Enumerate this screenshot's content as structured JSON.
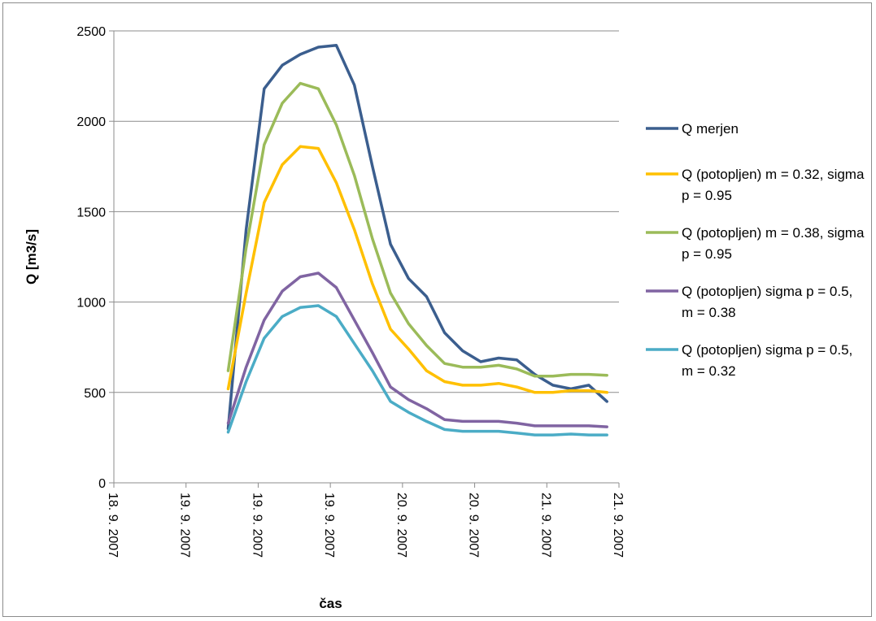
{
  "chart_data": {
    "type": "line",
    "title": "",
    "xlabel": "čas",
    "ylabel": "Q [m3/s]",
    "ylim": [
      0,
      2500
    ],
    "yticks": [
      0,
      500,
      1000,
      1500,
      2000,
      2500
    ],
    "xlim": [
      "18.9.2007 00:00",
      "21.9.2007 12:00"
    ],
    "xticks": [
      "18. 9. 2007",
      "19. 9. 2007",
      "19. 9. 2007",
      "19. 9. 2007",
      "20. 9. 2007",
      "20. 9. 2007",
      "21. 9. 2007",
      "21. 9. 2007"
    ],
    "grid": "horizontal",
    "legend_position": "right",
    "x": [
      "18.9.2007 19:00",
      "18.9.2007 22:00",
      "19.9.2007 01:00",
      "19.9.2007 04:00",
      "19.9.2007 07:00",
      "19.9.2007 10:00",
      "19.9.2007 13:00",
      "19.9.2007 16:00",
      "19.9.2007 19:00",
      "19.9.2007 22:00",
      "20.9.2007 01:00",
      "20.9.2007 04:00",
      "20.9.2007 07:00",
      "20.9.2007 10:00",
      "20.9.2007 13:00",
      "20.9.2007 16:00",
      "20.9.2007 19:00",
      "20.9.2007 22:00",
      "21.9.2007 01:00",
      "21.9.2007 04:00",
      "21.9.2007 07:00",
      "21.9.2007 10:00"
    ],
    "series": [
      {
        "name": "Q merjen",
        "color": "#3b5e8e",
        "values": [
          300,
          1400,
          2180,
          2310,
          2370,
          2410,
          2420,
          2200,
          1750,
          1320,
          1130,
          1030,
          830,
          730,
          670,
          690,
          680,
          600,
          540,
          520,
          540,
          450
        ]
      },
      {
        "name": "Q (potopljen) m = 0.32, sigma p = 0.95",
        "color": "#ffc000",
        "values": [
          520,
          1050,
          1550,
          1760,
          1860,
          1850,
          1660,
          1400,
          1100,
          850,
          740,
          620,
          560,
          540,
          540,
          550,
          530,
          500,
          500,
          510,
          510,
          500
        ]
      },
      {
        "name": "Q (potopljen) m = 0.38, sigma p = 0.95",
        "color": "#9bbb59",
        "values": [
          620,
          1300,
          1870,
          2100,
          2210,
          2180,
          1980,
          1700,
          1350,
          1050,
          880,
          760,
          660,
          640,
          640,
          650,
          630,
          590,
          590,
          600,
          600,
          595
        ]
      },
      {
        "name": "Q (potopljen) sigma p = 0.5, m = 0.38",
        "color": "#8064a2",
        "values": [
          330,
          640,
          900,
          1060,
          1140,
          1160,
          1080,
          900,
          720,
          530,
          460,
          410,
          350,
          340,
          340,
          340,
          330,
          315,
          315,
          315,
          315,
          310
        ]
      },
      {
        "name": "Q (potopljen) sigma p = 0.5, m = 0.32",
        "color": "#4bacc6",
        "values": [
          280,
          560,
          800,
          920,
          970,
          980,
          920,
          770,
          620,
          450,
          390,
          340,
          295,
          285,
          285,
          285,
          275,
          265,
          265,
          270,
          265,
          265
        ]
      }
    ]
  }
}
